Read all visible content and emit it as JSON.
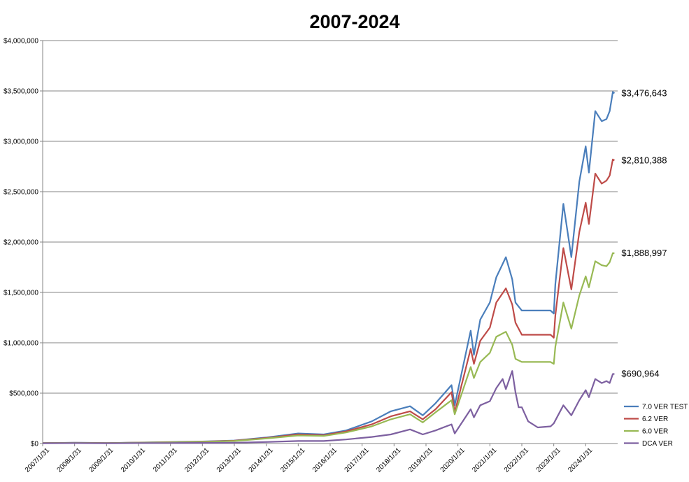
{
  "chart_data": {
    "type": "line",
    "title": "2007-2024",
    "xlabel": "",
    "ylabel": "",
    "ylim": [
      0,
      4000000
    ],
    "yticks": [
      0,
      500000,
      1000000,
      1500000,
      2000000,
      2500000,
      3000000,
      3500000,
      4000000
    ],
    "ytick_labels": [
      "$0",
      "$500,000",
      "$1,000,000",
      "$1,500,000",
      "$2,000,000",
      "$2,500,000",
      "$3,000,000",
      "$3,500,000",
      "$4,000,000"
    ],
    "xlim": [
      2007.0,
      2025.0
    ],
    "xticks": [
      2007,
      2008,
      2009,
      2010,
      2011,
      2012,
      2013,
      2014,
      2015,
      2016,
      2017,
      2018,
      2019,
      2020,
      2021,
      2022,
      2023,
      2024
    ],
    "xtick_labels": [
      "2007/1/31",
      "2008/1/31",
      "2009/1/31",
      "2010/1/31",
      "2011/1/31",
      "2012/1/31",
      "2013/1/31",
      "2014/1/31",
      "2015/1/31",
      "2016/1/31",
      "2017/1/31",
      "2018/1/31",
      "2019/1/31",
      "2020/1/31",
      "2021/1/31",
      "2022/1/31",
      "2023/1/31",
      "2024/1/31"
    ],
    "grid": "horizontal",
    "legend_position": "right",
    "series": [
      {
        "name": "7.0 VER TEST",
        "color": "#4a7ebb",
        "end_label": "$3,476,643",
        "points": [
          [
            2007.0,
            5000
          ],
          [
            2008.0,
            8000
          ],
          [
            2009.0,
            5000
          ],
          [
            2010.0,
            10000
          ],
          [
            2011.0,
            15000
          ],
          [
            2012.0,
            20000
          ],
          [
            2013.0,
            30000
          ],
          [
            2014.0,
            60000
          ],
          [
            2015.0,
            100000
          ],
          [
            2015.8,
            90000
          ],
          [
            2016.5,
            130000
          ],
          [
            2017.3,
            220000
          ],
          [
            2017.9,
            320000
          ],
          [
            2018.5,
            370000
          ],
          [
            2018.9,
            280000
          ],
          [
            2019.3,
            400000
          ],
          [
            2019.8,
            580000
          ],
          [
            2019.9,
            380000
          ],
          [
            2020.4,
            1120000
          ],
          [
            2020.5,
            880000
          ],
          [
            2020.7,
            1230000
          ],
          [
            2021.0,
            1400000
          ],
          [
            2021.2,
            1650000
          ],
          [
            2021.5,
            1850000
          ],
          [
            2021.7,
            1630000
          ],
          [
            2021.8,
            1400000
          ],
          [
            2022.0,
            1320000
          ],
          [
            2022.5,
            1320000
          ],
          [
            2022.9,
            1320000
          ],
          [
            2023.0,
            1290000
          ],
          [
            2023.05,
            1580000
          ],
          [
            2023.3,
            2380000
          ],
          [
            2023.55,
            1850000
          ],
          [
            2023.8,
            2600000
          ],
          [
            2024.0,
            2950000
          ],
          [
            2024.1,
            2690000
          ],
          [
            2024.3,
            3300000
          ],
          [
            2024.5,
            3200000
          ],
          [
            2024.65,
            3220000
          ],
          [
            2024.75,
            3300000
          ],
          [
            2024.85,
            3490000
          ],
          [
            2024.9,
            3476643
          ]
        ]
      },
      {
        "name": "6.2 VER",
        "color": "#be4b48",
        "end_label": "$2,810,388",
        "points": [
          [
            2007.0,
            5000
          ],
          [
            2008.0,
            7000
          ],
          [
            2009.0,
            5000
          ],
          [
            2010.0,
            9000
          ],
          [
            2011.0,
            13000
          ],
          [
            2012.0,
            18000
          ],
          [
            2013.0,
            28000
          ],
          [
            2014.0,
            55000
          ],
          [
            2015.0,
            90000
          ],
          [
            2015.8,
            82000
          ],
          [
            2016.5,
            120000
          ],
          [
            2017.3,
            190000
          ],
          [
            2017.9,
            270000
          ],
          [
            2018.5,
            320000
          ],
          [
            2018.9,
            240000
          ],
          [
            2019.3,
            340000
          ],
          [
            2019.8,
            510000
          ],
          [
            2019.9,
            310000
          ],
          [
            2020.4,
            940000
          ],
          [
            2020.5,
            790000
          ],
          [
            2020.7,
            1020000
          ],
          [
            2021.0,
            1150000
          ],
          [
            2021.2,
            1400000
          ],
          [
            2021.5,
            1540000
          ],
          [
            2021.7,
            1380000
          ],
          [
            2021.8,
            1200000
          ],
          [
            2022.0,
            1080000
          ],
          [
            2022.5,
            1080000
          ],
          [
            2022.9,
            1080000
          ],
          [
            2023.0,
            1050000
          ],
          [
            2023.05,
            1270000
          ],
          [
            2023.3,
            1940000
          ],
          [
            2023.55,
            1530000
          ],
          [
            2023.8,
            2100000
          ],
          [
            2024.0,
            2390000
          ],
          [
            2024.1,
            2180000
          ],
          [
            2024.3,
            2680000
          ],
          [
            2024.5,
            2580000
          ],
          [
            2024.65,
            2610000
          ],
          [
            2024.75,
            2660000
          ],
          [
            2024.85,
            2820000
          ],
          [
            2024.9,
            2810388
          ]
        ]
      },
      {
        "name": "6.0 VER",
        "color": "#98b954",
        "end_label": "$1,888,997",
        "points": [
          [
            2007.0,
            5000
          ],
          [
            2008.0,
            6000
          ],
          [
            2009.0,
            5000
          ],
          [
            2010.0,
            8000
          ],
          [
            2011.0,
            12000
          ],
          [
            2012.0,
            16000
          ],
          [
            2013.0,
            25000
          ],
          [
            2014.0,
            50000
          ],
          [
            2015.0,
            80000
          ],
          [
            2015.8,
            75000
          ],
          [
            2016.5,
            110000
          ],
          [
            2017.3,
            170000
          ],
          [
            2017.9,
            240000
          ],
          [
            2018.5,
            290000
          ],
          [
            2018.9,
            210000
          ],
          [
            2019.3,
            310000
          ],
          [
            2019.8,
            430000
          ],
          [
            2019.9,
            290000
          ],
          [
            2020.4,
            760000
          ],
          [
            2020.5,
            650000
          ],
          [
            2020.7,
            810000
          ],
          [
            2021.0,
            900000
          ],
          [
            2021.2,
            1060000
          ],
          [
            2021.5,
            1110000
          ],
          [
            2021.7,
            980000
          ],
          [
            2021.8,
            840000
          ],
          [
            2022.0,
            810000
          ],
          [
            2022.5,
            810000
          ],
          [
            2022.9,
            810000
          ],
          [
            2023.0,
            790000
          ],
          [
            2023.05,
            960000
          ],
          [
            2023.3,
            1400000
          ],
          [
            2023.55,
            1140000
          ],
          [
            2023.8,
            1470000
          ],
          [
            2024.0,
            1660000
          ],
          [
            2024.1,
            1550000
          ],
          [
            2024.3,
            1810000
          ],
          [
            2024.5,
            1770000
          ],
          [
            2024.65,
            1760000
          ],
          [
            2024.75,
            1800000
          ],
          [
            2024.85,
            1890000
          ],
          [
            2024.9,
            1888997
          ]
        ]
      },
      {
        "name": "DCA VER",
        "color": "#7d60a0",
        "end_label": "$690,964",
        "points": [
          [
            2007.0,
            3000
          ],
          [
            2008.0,
            4000
          ],
          [
            2009.0,
            3000
          ],
          [
            2010.0,
            4000
          ],
          [
            2011.0,
            5000
          ],
          [
            2012.0,
            6000
          ],
          [
            2013.0,
            8000
          ],
          [
            2014.0,
            15000
          ],
          [
            2015.0,
            25000
          ],
          [
            2015.8,
            25000
          ],
          [
            2016.5,
            40000
          ],
          [
            2017.3,
            65000
          ],
          [
            2017.9,
            90000
          ],
          [
            2018.5,
            140000
          ],
          [
            2018.9,
            90000
          ],
          [
            2019.3,
            130000
          ],
          [
            2019.8,
            190000
          ],
          [
            2019.9,
            100000
          ],
          [
            2020.4,
            340000
          ],
          [
            2020.5,
            260000
          ],
          [
            2020.7,
            380000
          ],
          [
            2021.0,
            420000
          ],
          [
            2021.2,
            550000
          ],
          [
            2021.4,
            640000
          ],
          [
            2021.5,
            540000
          ],
          [
            2021.7,
            720000
          ],
          [
            2021.8,
            510000
          ],
          [
            2021.9,
            360000
          ],
          [
            2022.0,
            360000
          ],
          [
            2022.2,
            220000
          ],
          [
            2022.5,
            160000
          ],
          [
            2022.9,
            170000
          ],
          [
            2023.0,
            200000
          ],
          [
            2023.3,
            380000
          ],
          [
            2023.55,
            280000
          ],
          [
            2023.8,
            430000
          ],
          [
            2024.0,
            530000
          ],
          [
            2024.1,
            460000
          ],
          [
            2024.3,
            640000
          ],
          [
            2024.5,
            600000
          ],
          [
            2024.65,
            620000
          ],
          [
            2024.75,
            600000
          ],
          [
            2024.85,
            690000
          ],
          [
            2024.9,
            690964
          ]
        ]
      }
    ]
  }
}
